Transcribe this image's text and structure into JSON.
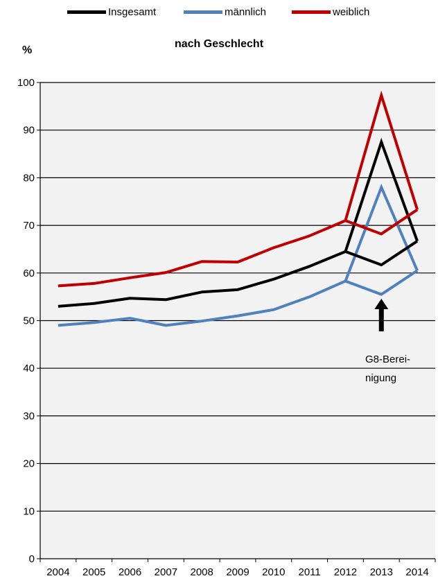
{
  "chart_data": {
    "type": "line",
    "title": "nach Geschlecht",
    "ylabel": "%",
    "ylim": [
      0,
      100
    ],
    "yticks": [
      "0",
      "10",
      "20",
      "30",
      "40",
      "50",
      "60",
      "70",
      "80",
      "90",
      "100"
    ],
    "grid": true,
    "legend_position": "top",
    "x": [
      "2004",
      "2005",
      "2006",
      "2007",
      "2008",
      "2009",
      "2010",
      "2011",
      "2012",
      "2013",
      "2014"
    ],
    "series": [
      {
        "name": "Insgesamt",
        "color": "#000000",
        "values": [
          53.0,
          53.6,
          54.7,
          54.4,
          56.0,
          56.5,
          58.7,
          61.4,
          64.5,
          61.7,
          66.7
        ]
      },
      {
        "name": "männlich",
        "color": "#4f81bd",
        "values": [
          49.0,
          49.6,
          50.5,
          49.0,
          49.9,
          51.0,
          52.3,
          55.0,
          58.3,
          55.5,
          60.5
        ]
      },
      {
        "name": "weiblich",
        "color": "#c00000",
        "values": [
          57.3,
          57.8,
          59.0,
          60.1,
          62.4,
          62.3,
          65.3,
          67.8,
          71.0,
          68.2,
          73.3
        ]
      }
    ],
    "g8_series": [
      {
        "series": "Insgesamt",
        "from": "2012",
        "peak": "2013",
        "to": "2014",
        "value": 87.5
      },
      {
        "series": "männlich",
        "from": "2012",
        "peak": "2013",
        "to": "2014",
        "value": 78.0
      },
      {
        "series": "weiblich",
        "from": "2012",
        "peak": "2013",
        "to": "2014",
        "value": 97.3
      }
    ],
    "annotation": {
      "line1": "G8-Berei-",
      "line2": "nigung",
      "at": "2013"
    }
  }
}
